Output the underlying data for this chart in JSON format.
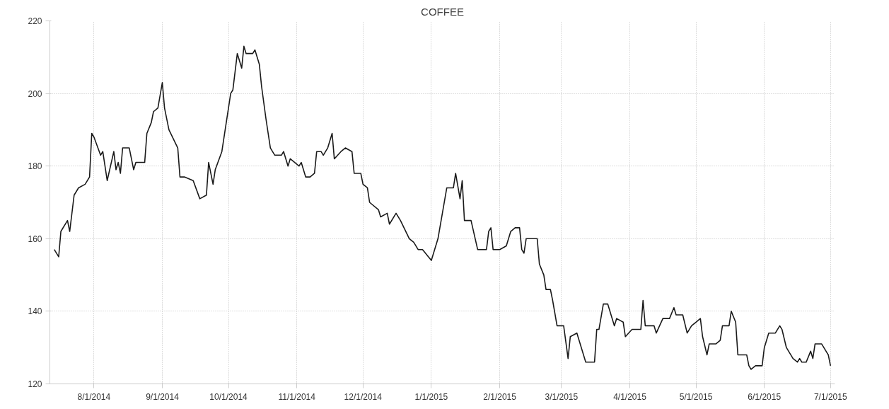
{
  "chart_data": {
    "type": "line",
    "title": "COFFEE",
    "x": [
      "2014-07-14",
      "2014-07-16",
      "2014-07-17",
      "2014-07-20",
      "2014-07-21",
      "2014-07-23",
      "2014-07-25",
      "2014-07-28",
      "2014-07-30",
      "2014-07-31",
      "2014-08-01",
      "2014-08-04",
      "2014-08-05",
      "2014-08-07",
      "2014-08-10",
      "2014-08-11",
      "2014-08-12",
      "2014-08-13",
      "2014-08-14",
      "2014-08-17",
      "2014-08-19",
      "2014-08-20",
      "2014-08-24",
      "2014-08-25",
      "2014-08-27",
      "2014-08-28",
      "2014-08-30",
      "2014-09-01",
      "2014-09-02",
      "2014-09-04",
      "2014-09-08",
      "2014-09-09",
      "2014-09-11",
      "2014-09-15",
      "2014-09-18",
      "2014-09-21",
      "2014-09-22",
      "2014-09-24",
      "2014-09-25",
      "2014-09-28",
      "2014-10-02",
      "2014-10-03",
      "2014-10-05",
      "2014-10-07",
      "2014-10-08",
      "2014-10-09",
      "2014-10-12",
      "2014-10-13",
      "2014-10-15",
      "2014-10-16",
      "2014-10-18",
      "2014-10-20",
      "2014-10-22",
      "2014-10-25",
      "2014-10-26",
      "2014-10-28",
      "2014-10-29",
      "2014-11-02",
      "2014-11-03",
      "2014-11-05",
      "2014-11-07",
      "2014-11-09",
      "2014-11-10",
      "2014-11-12",
      "2014-11-13",
      "2014-11-15",
      "2014-11-17",
      "2014-11-18",
      "2014-11-21",
      "2014-11-23",
      "2014-11-26",
      "2014-11-27",
      "2014-11-30",
      "2014-12-01",
      "2014-12-03",
      "2014-12-04",
      "2014-12-08",
      "2014-12-09",
      "2014-12-12",
      "2014-12-13",
      "2014-12-16",
      "2014-12-18",
      "2014-12-22",
      "2014-12-24",
      "2014-12-26",
      "2014-12-28",
      "2015-01-01",
      "2015-01-04",
      "2015-01-06",
      "2015-01-08",
      "2015-01-11",
      "2015-01-12",
      "2015-01-14",
      "2015-01-15",
      "2015-01-16",
      "2015-01-19",
      "2015-01-22",
      "2015-01-26",
      "2015-01-27",
      "2015-01-28",
      "2015-01-29",
      "2015-02-01",
      "2015-02-04",
      "2015-02-06",
      "2015-02-08",
      "2015-02-10",
      "2015-02-11",
      "2015-02-12",
      "2015-02-13",
      "2015-02-17",
      "2015-02-18",
      "2015-02-19",
      "2015-02-21",
      "2015-02-22",
      "2015-02-24",
      "2015-02-25",
      "2015-02-27",
      "2015-03-02",
      "2015-03-04",
      "2015-03-05",
      "2015-03-08",
      "2015-03-09",
      "2015-03-12",
      "2015-03-16",
      "2015-03-17",
      "2015-03-18",
      "2015-03-20",
      "2015-03-22",
      "2015-03-23",
      "2015-03-25",
      "2015-03-26",
      "2015-03-29",
      "2015-03-30",
      "2015-04-02",
      "2015-04-06",
      "2015-04-07",
      "2015-04-08",
      "2015-04-12",
      "2015-04-13",
      "2015-04-16",
      "2015-04-19",
      "2015-04-21",
      "2015-04-22",
      "2015-04-25",
      "2015-04-27",
      "2015-04-29",
      "2015-05-01",
      "2015-05-03",
      "2015-05-04",
      "2015-05-06",
      "2015-05-07",
      "2015-05-10",
      "2015-05-12",
      "2015-05-13",
      "2015-05-16",
      "2015-05-17",
      "2015-05-19",
      "2015-05-20",
      "2015-05-24",
      "2015-05-25",
      "2015-05-26",
      "2015-05-28",
      "2015-05-31",
      "2015-06-01",
      "2015-06-03",
      "2015-06-06",
      "2015-06-08",
      "2015-06-09",
      "2015-06-11",
      "2015-06-14",
      "2015-06-16",
      "2015-06-17",
      "2015-06-18",
      "2015-06-20",
      "2015-06-22",
      "2015-06-23",
      "2015-06-24",
      "2015-06-27",
      "2015-06-29",
      "2015-06-30",
      "2015-07-01"
    ],
    "series": [
      {
        "color": "#1a1a1a",
        "values": [
          157,
          155,
          162,
          165,
          162,
          172,
          174,
          175,
          177,
          189,
          188,
          183,
          184,
          176,
          184,
          179,
          181,
          178,
          185,
          185,
          179,
          181,
          181,
          189,
          192,
          195,
          196,
          203,
          196,
          190,
          185,
          177,
          177,
          176,
          171,
          172,
          181,
          175,
          179,
          184,
          200,
          201,
          211,
          207,
          213,
          211,
          211,
          212,
          208,
          202,
          193,
          185,
          183,
          183,
          184,
          180,
          182,
          180,
          181,
          177,
          177,
          178,
          184,
          184,
          183,
          185,
          189,
          182,
          184,
          185,
          184,
          178,
          178,
          175,
          174,
          170,
          168,
          166,
          167,
          164,
          167,
          165,
          160,
          159,
          157,
          157,
          154,
          160,
          167,
          174,
          174,
          178,
          171,
          176,
          165,
          165,
          157,
          157,
          162,
          163,
          157,
          157,
          158,
          162,
          163,
          163,
          157,
          156,
          160,
          160,
          160,
          153,
          150,
          146,
          146,
          143,
          136,
          136,
          127,
          133,
          134,
          132,
          126,
          126,
          135,
          135,
          142,
          142,
          140,
          136,
          138,
          137,
          133,
          135,
          135,
          143,
          136,
          136,
          134,
          138,
          138,
          141,
          139,
          139,
          134,
          136,
          137,
          138,
          133,
          128,
          131,
          131,
          132,
          136,
          136,
          140,
          137,
          128,
          128,
          125,
          124,
          125,
          125,
          130,
          134,
          134,
          136,
          135,
          130,
          127,
          126,
          127,
          126,
          126,
          129,
          127,
          131,
          131,
          129,
          128,
          125
        ]
      }
    ],
    "xlim": [
      "2014-07-12",
      "2015-07-03"
    ],
    "xticks": [
      {
        "value": "2014-08-01",
        "label": "8/1/2014"
      },
      {
        "value": "2014-09-01",
        "label": "9/1/2014"
      },
      {
        "value": "2014-10-01",
        "label": "10/1/2014"
      },
      {
        "value": "2014-11-01",
        "label": "11/1/2014"
      },
      {
        "value": "2014-12-01",
        "label": "12/1/2014"
      },
      {
        "value": "2015-01-01",
        "label": "1/1/2015"
      },
      {
        "value": "2015-02-01",
        "label": "2/1/2015"
      },
      {
        "value": "2015-03-01",
        "label": "3/1/2015"
      },
      {
        "value": "2015-04-01",
        "label": "4/1/2015"
      },
      {
        "value": "2015-05-01",
        "label": "5/1/2015"
      },
      {
        "value": "2015-06-01",
        "label": "6/1/2015"
      },
      {
        "value": "2015-07-01",
        "label": "7/1/2015"
      }
    ],
    "ylim": [
      120,
      220
    ],
    "yticks": [
      120,
      140,
      160,
      180,
      200,
      220
    ],
    "grid": true,
    "line_style": "solid"
  }
}
